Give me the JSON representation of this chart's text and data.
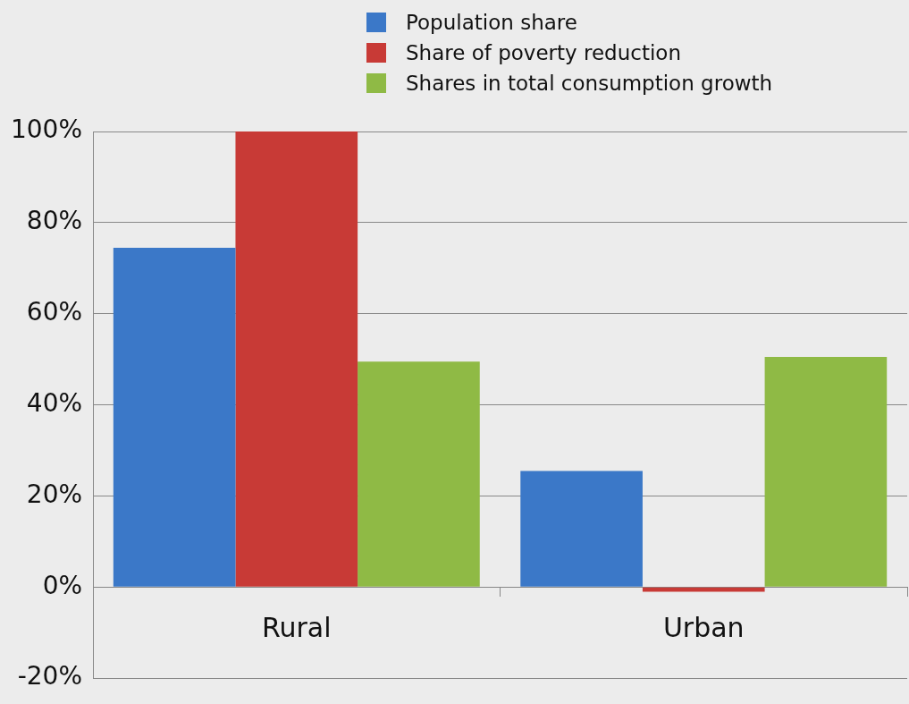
{
  "chart_data": {
    "type": "bar",
    "categories": [
      "Rural",
      "Urban"
    ],
    "series": [
      {
        "name": "Population share",
        "color": "#3b78c8",
        "values": [
          74.5,
          25.5
        ]
      },
      {
        "name": "Share of poverty reduction",
        "color": "#c83a36",
        "values": [
          100,
          -1
        ]
      },
      {
        "name": "Shares in total consumption growth",
        "color": "#8fba45",
        "values": [
          49.5,
          50.5
        ]
      }
    ],
    "ylim": [
      -20,
      100
    ],
    "yticks": [
      {
        "value": -20,
        "label": "-20%"
      },
      {
        "value": 0,
        "label": "0%"
      },
      {
        "value": 20,
        "label": "20%"
      },
      {
        "value": 40,
        "label": "40%"
      },
      {
        "value": 60,
        "label": "60%"
      },
      {
        "value": 80,
        "label": "80%"
      },
      {
        "value": 100,
        "label": "100%"
      }
    ],
    "grid": "y",
    "legend": "top"
  }
}
